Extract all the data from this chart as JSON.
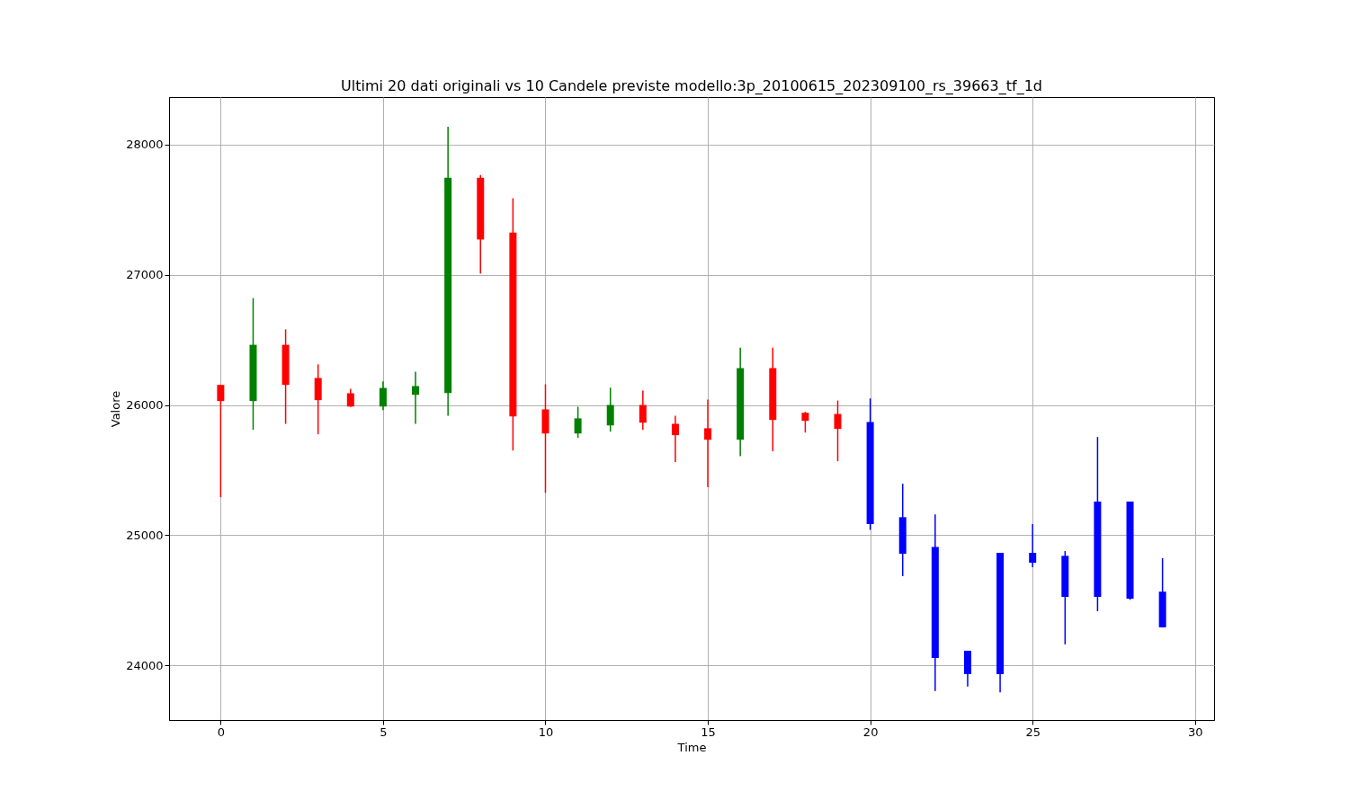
{
  "chart_data": {
    "type": "candlestick",
    "title": "Ultimi 20 dati originali vs 10 Candele previste modello:3p_20100615_202309100_rs_39663_tf_1d",
    "xlabel": "Time",
    "ylabel": "Valore",
    "x": [
      0,
      1,
      2,
      3,
      4,
      5,
      6,
      7,
      8,
      9,
      10,
      11,
      12,
      13,
      14,
      15,
      16,
      17,
      18,
      19,
      20,
      21,
      22,
      23,
      24,
      25,
      26,
      27,
      28,
      29
    ],
    "ohlc": [
      [
        26154,
        26154,
        25292,
        26030
      ],
      [
        26030,
        26821,
        25809,
        26462
      ],
      [
        26462,
        26581,
        25855,
        26154
      ],
      [
        26207,
        26312,
        25775,
        26037
      ],
      [
        26090,
        26124,
        25985,
        25988
      ],
      [
        25988,
        26181,
        25961,
        26131
      ],
      [
        26078,
        26255,
        25855,
        26145
      ],
      [
        26092,
        28138,
        25917,
        27745
      ],
      [
        27745,
        27766,
        27009,
        27271
      ],
      [
        27324,
        27588,
        25650,
        25912
      ],
      [
        25966,
        26159,
        25326,
        25781
      ],
      [
        25781,
        25986,
        25747,
        25897
      ],
      [
        25843,
        26133,
        25795,
        26000
      ],
      [
        26000,
        26110,
        25809,
        25864
      ],
      [
        25855,
        25917,
        25561,
        25768
      ],
      [
        25821,
        26041,
        25368,
        25733
      ],
      [
        25733,
        26441,
        25607,
        26283
      ],
      [
        26283,
        26441,
        25644,
        25885
      ],
      [
        25940,
        25947,
        25788,
        25878
      ],
      [
        25931,
        26034,
        25568,
        25816
      ],
      [
        25869,
        26050,
        25041,
        25085
      ],
      [
        25138,
        25395,
        24685,
        24857
      ],
      [
        24910,
        25159,
        23802,
        24057
      ],
      [
        24112,
        24112,
        23837,
        23933
      ],
      [
        23933,
        24864,
        23793,
        24864
      ],
      [
        24864,
        25085,
        24754,
        24788
      ],
      [
        24841,
        24878,
        24161,
        24526
      ],
      [
        24526,
        25754,
        24416,
        25257
      ],
      [
        25257,
        25257,
        24503,
        24512
      ],
      [
        24566,
        24823,
        24292,
        24292
      ]
    ],
    "colors": [
      "#ff0000",
      "#008000",
      "#ff0000",
      "#ff0000",
      "#ff0000",
      "#008000",
      "#008000",
      "#008000",
      "#ff0000",
      "#ff0000",
      "#ff0000",
      "#008000",
      "#008000",
      "#ff0000",
      "#ff0000",
      "#ff0000",
      "#008000",
      "#ff0000",
      "#ff0000",
      "#ff0000",
      "#0000ff",
      "#0000ff",
      "#0000ff",
      "#0000ff",
      "#0000ff",
      "#0000ff",
      "#0000ff",
      "#0000ff",
      "#0000ff",
      "#0000ff"
    ],
    "xlim": [
      -1.45,
      30.45
    ],
    "xticks": [
      0,
      5,
      10,
      15,
      20,
      25,
      30
    ],
    "ylim": [
      23580,
      28365
    ],
    "yticks": [
      24000,
      25000,
      26000,
      27000,
      28000
    ],
    "grid": true
  }
}
